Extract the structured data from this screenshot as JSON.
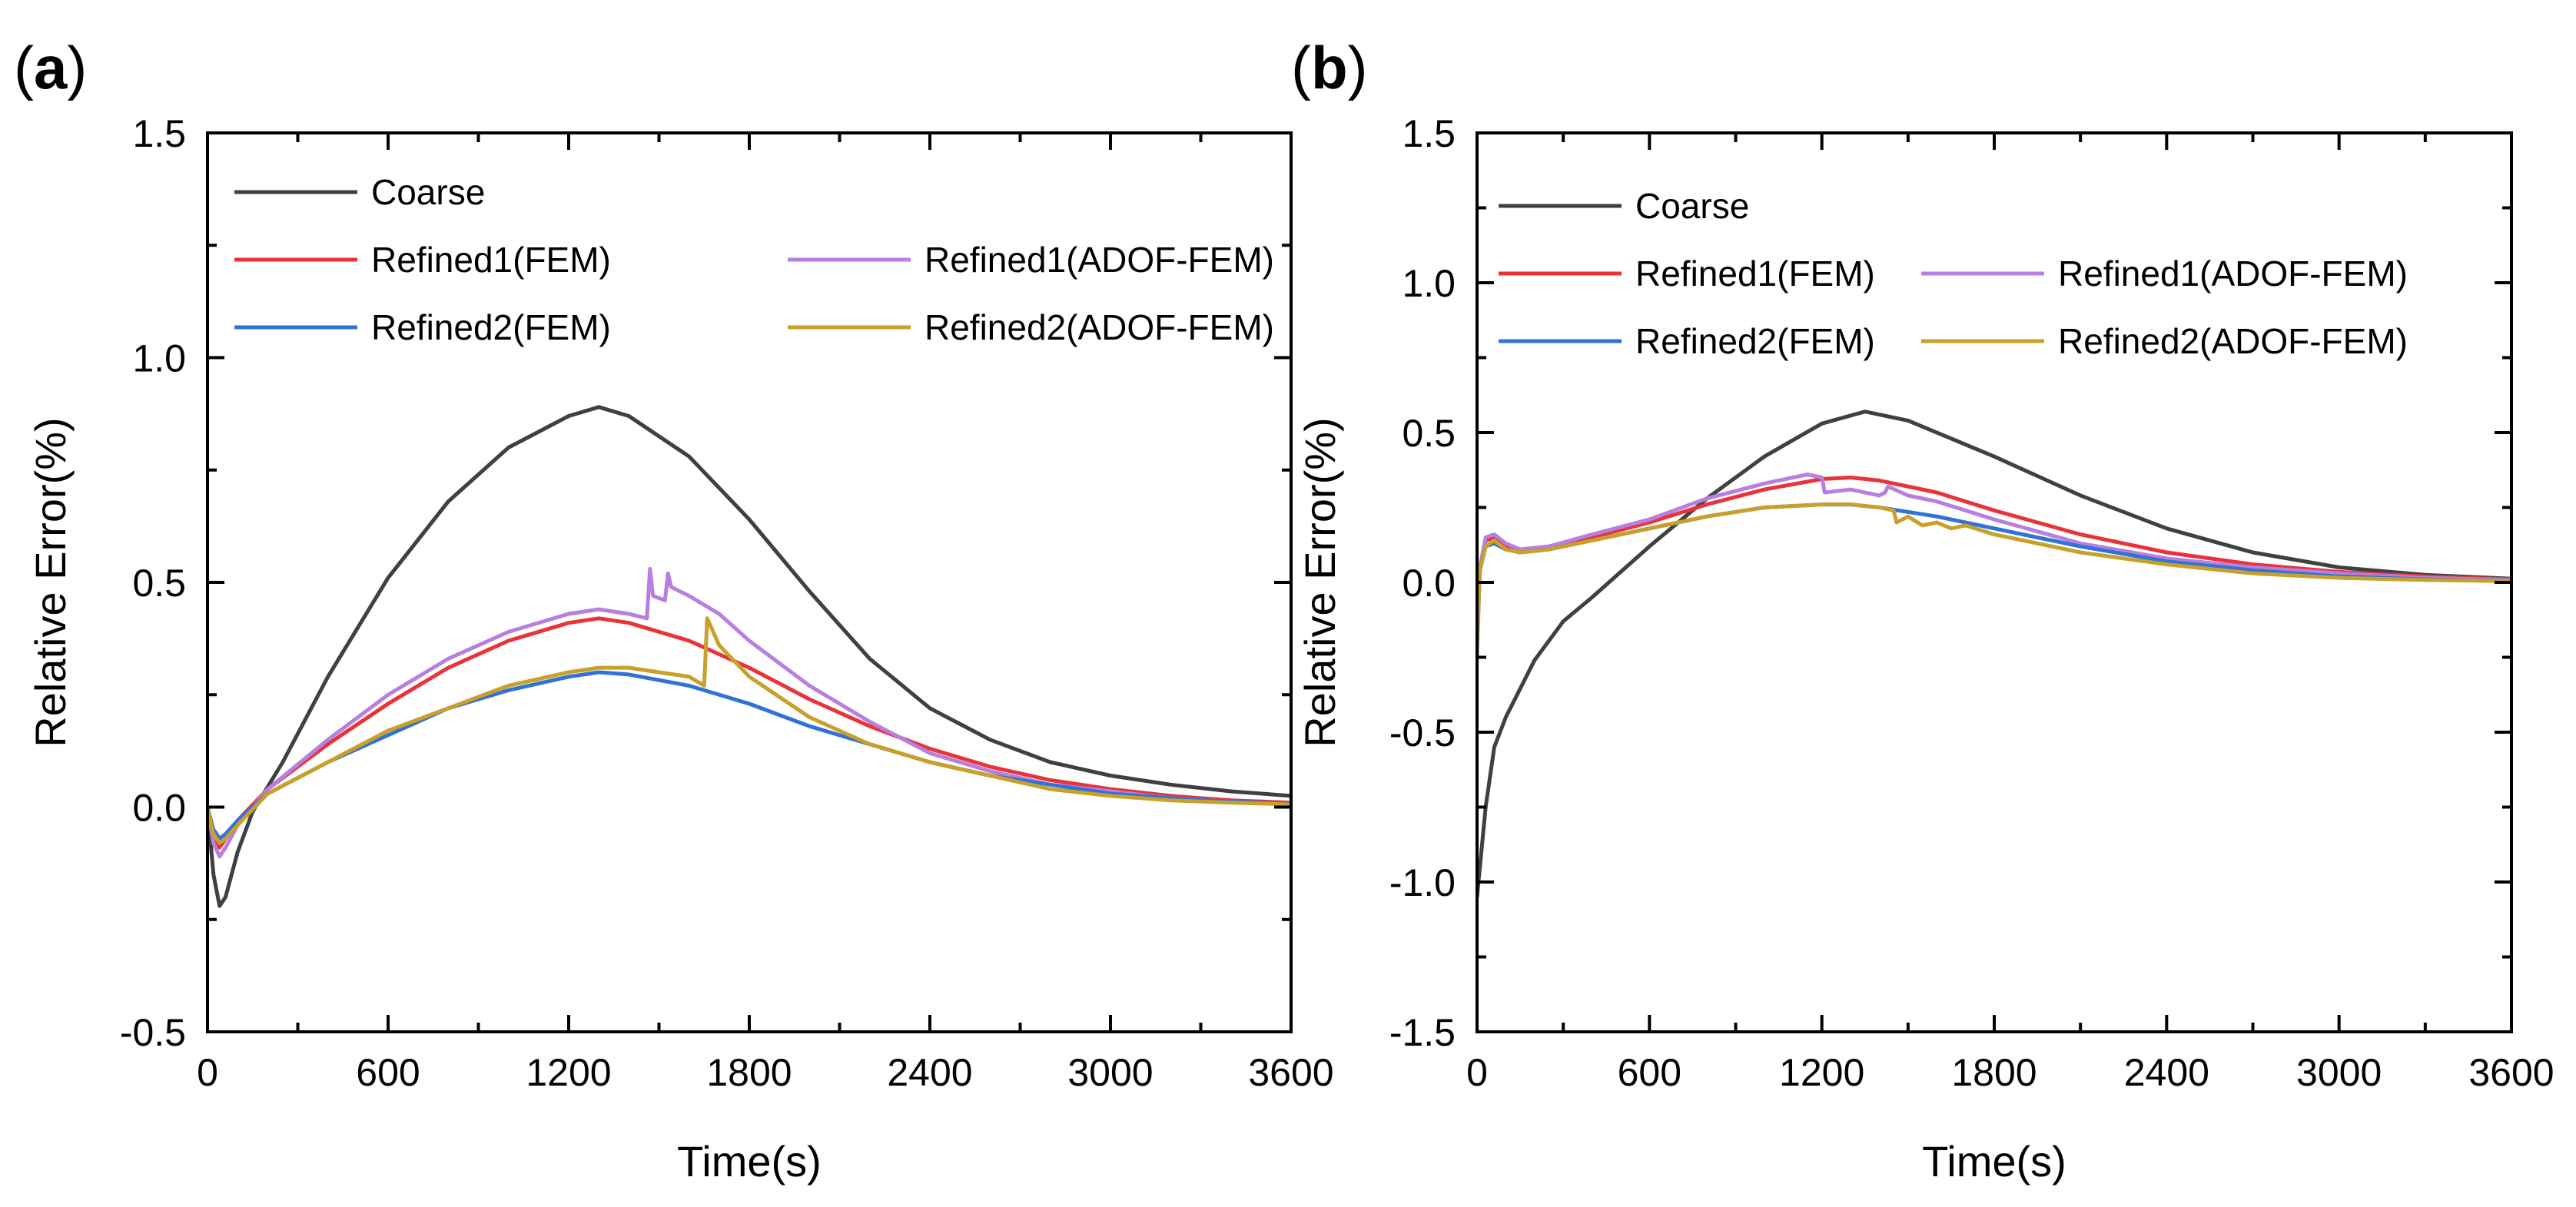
{
  "colors": {
    "coarse": "#404040",
    "refined1_fem": "#e8333a",
    "refined1_adof": "#b77fe0",
    "refined2_fem": "#2f73d6",
    "refined2_adof": "#c8a02a"
  },
  "chart_data": [
    {
      "type": "line",
      "panel_label": "(a)",
      "panel_prefix": "(",
      "panel_letter": "a",
      "panel_suffix": ")",
      "xlabel": "Time(s)",
      "ylabel": "Relative Error(%)",
      "xlim": [
        0,
        3600
      ],
      "ylim": [
        -0.5,
        1.5
      ],
      "xticks": [
        "0",
        "600",
        "1200",
        "1800",
        "2400",
        "3000",
        "3600"
      ],
      "yticks": [
        "-0.5",
        "0.0",
        "0.5",
        "1.0",
        "1.5"
      ],
      "grid": false,
      "legend_position": "top-left",
      "series": [
        {
          "name": "Coarse",
          "color_key": "coarse",
          "x": [
            0,
            20,
            40,
            60,
            100,
            150,
            250,
            400,
            600,
            800,
            1000,
            1200,
            1300,
            1400,
            1600,
            1800,
            2000,
            2200,
            2400,
            2600,
            2800,
            3000,
            3200,
            3400,
            3600
          ],
          "y": [
            0.0,
            -0.15,
            -0.22,
            -0.2,
            -0.1,
            -0.01,
            0.1,
            0.29,
            0.51,
            0.68,
            0.8,
            0.87,
            0.89,
            0.87,
            0.78,
            0.64,
            0.48,
            0.33,
            0.22,
            0.15,
            0.1,
            0.07,
            0.05,
            0.035,
            0.025
          ]
        },
        {
          "name": "Refined1(FEM)",
          "color_key": "refined1_fem",
          "x": [
            0,
            20,
            40,
            60,
            100,
            200,
            400,
            600,
            800,
            1000,
            1200,
            1300,
            1400,
            1600,
            1800,
            2000,
            2200,
            2400,
            2600,
            2800,
            3000,
            3200,
            3400,
            3600
          ],
          "y": [
            0.0,
            -0.06,
            -0.09,
            -0.07,
            -0.03,
            0.04,
            0.14,
            0.23,
            0.31,
            0.37,
            0.41,
            0.42,
            0.41,
            0.37,
            0.31,
            0.24,
            0.18,
            0.13,
            0.09,
            0.06,
            0.04,
            0.025,
            0.015,
            0.01
          ]
        },
        {
          "name": "Refined1(ADOF-FEM)",
          "color_key": "refined1_adof",
          "x": [
            0,
            20,
            40,
            60,
            100,
            200,
            400,
            600,
            800,
            1000,
            1200,
            1300,
            1400,
            1460,
            1470,
            1480,
            1520,
            1530,
            1540,
            1600,
            1700,
            1800,
            2000,
            2200,
            2400,
            2600,
            2800,
            3000,
            3200,
            3400,
            3600
          ],
          "y": [
            0.0,
            -0.08,
            -0.11,
            -0.09,
            -0.04,
            0.04,
            0.15,
            0.25,
            0.33,
            0.39,
            0.43,
            0.44,
            0.43,
            0.42,
            0.53,
            0.47,
            0.46,
            0.52,
            0.49,
            0.47,
            0.43,
            0.37,
            0.27,
            0.19,
            0.12,
            0.08,
            0.05,
            0.035,
            0.02,
            0.012,
            0.008
          ]
        },
        {
          "name": "Refined2(FEM)",
          "color_key": "refined2_fem",
          "x": [
            0,
            20,
            40,
            60,
            100,
            200,
            400,
            600,
            800,
            1000,
            1200,
            1300,
            1400,
            1600,
            1800,
            2000,
            2200,
            2400,
            2600,
            2800,
            3000,
            3200,
            3400,
            3600
          ],
          "y": [
            0.0,
            -0.05,
            -0.07,
            -0.06,
            -0.03,
            0.03,
            0.1,
            0.16,
            0.22,
            0.26,
            0.29,
            0.3,
            0.295,
            0.27,
            0.23,
            0.18,
            0.14,
            0.1,
            0.07,
            0.05,
            0.03,
            0.02,
            0.012,
            0.008
          ]
        },
        {
          "name": "Refined2(ADOF-FEM)",
          "color_key": "refined2_adof",
          "x": [
            0,
            20,
            40,
            60,
            100,
            200,
            400,
            600,
            800,
            1000,
            1200,
            1300,
            1400,
            1500,
            1600,
            1650,
            1660,
            1700,
            1800,
            2000,
            2200,
            2400,
            2600,
            2800,
            3000,
            3200,
            3400,
            3600
          ],
          "y": [
            0.0,
            -0.06,
            -0.08,
            -0.07,
            -0.04,
            0.03,
            0.1,
            0.17,
            0.22,
            0.27,
            0.3,
            0.31,
            0.31,
            0.3,
            0.29,
            0.27,
            0.42,
            0.36,
            0.29,
            0.2,
            0.14,
            0.1,
            0.07,
            0.04,
            0.025,
            0.015,
            0.01,
            0.006
          ]
        }
      ]
    },
    {
      "type": "line",
      "panel_label": "(b)",
      "panel_prefix": "(",
      "panel_letter": "b",
      "panel_suffix": ")",
      "xlabel": "Time(s)",
      "ylabel": "Relative Error(%)",
      "xlim": [
        0,
        3600
      ],
      "ylim": [
        -1.5,
        1.5
      ],
      "xticks": [
        "0",
        "600",
        "1200",
        "1800",
        "2400",
        "3000",
        "3600"
      ],
      "yticks": [
        "-1.5",
        "-1.0",
        "-0.5",
        "0.0",
        "0.5",
        "1.0",
        "1.5"
      ],
      "grid": false,
      "legend_position": "top-left",
      "series": [
        {
          "name": "Coarse",
          "color_key": "coarse",
          "x": [
            0,
            10,
            30,
            60,
            100,
            200,
            300,
            400,
            600,
            800,
            1000,
            1200,
            1350,
            1500,
            1800,
            2100,
            2400,
            2700,
            3000,
            3300,
            3600
          ],
          "y": [
            -1.05,
            -0.95,
            -0.75,
            -0.55,
            -0.45,
            -0.26,
            -0.13,
            -0.05,
            0.12,
            0.28,
            0.42,
            0.53,
            0.57,
            0.54,
            0.42,
            0.29,
            0.18,
            0.1,
            0.05,
            0.025,
            0.012
          ]
        },
        {
          "name": "Refined1(FEM)",
          "color_key": "refined1_fem",
          "x": [
            0,
            10,
            30,
            60,
            100,
            150,
            250,
            400,
            600,
            800,
            1000,
            1200,
            1300,
            1400,
            1600,
            1800,
            2100,
            2400,
            2700,
            3000,
            3300,
            3600
          ],
          "y": [
            -0.2,
            0.05,
            0.14,
            0.15,
            0.12,
            0.11,
            0.12,
            0.15,
            0.2,
            0.26,
            0.31,
            0.345,
            0.35,
            0.34,
            0.3,
            0.24,
            0.16,
            0.1,
            0.06,
            0.035,
            0.02,
            0.01
          ]
        },
        {
          "name": "Refined1(ADOF-FEM)",
          "color_key": "refined1_adof",
          "x": [
            0,
            10,
            30,
            60,
            100,
            150,
            250,
            400,
            600,
            800,
            1000,
            1150,
            1200,
            1210,
            1300,
            1400,
            1420,
            1430,
            1500,
            1600,
            1800,
            2100,
            2400,
            2700,
            3000,
            3300,
            3600
          ],
          "y": [
            -0.25,
            0.05,
            0.15,
            0.16,
            0.13,
            0.11,
            0.12,
            0.16,
            0.21,
            0.28,
            0.33,
            0.36,
            0.35,
            0.3,
            0.31,
            0.29,
            0.3,
            0.32,
            0.29,
            0.27,
            0.21,
            0.13,
            0.08,
            0.05,
            0.03,
            0.015,
            0.008
          ]
        },
        {
          "name": "Refined2(FEM)",
          "color_key": "refined2_fem",
          "x": [
            0,
            10,
            30,
            60,
            100,
            150,
            250,
            400,
            600,
            800,
            1000,
            1200,
            1300,
            1400,
            1600,
            1800,
            2100,
            2400,
            2700,
            3000,
            3300,
            3600
          ],
          "y": [
            -0.2,
            0.04,
            0.12,
            0.13,
            0.11,
            0.1,
            0.11,
            0.14,
            0.18,
            0.22,
            0.25,
            0.26,
            0.26,
            0.25,
            0.22,
            0.18,
            0.12,
            0.07,
            0.04,
            0.02,
            0.01,
            0.005
          ]
        },
        {
          "name": "Refined2(ADOF-FEM)",
          "color_key": "refined2_adof",
          "x": [
            0,
            10,
            30,
            60,
            100,
            150,
            250,
            400,
            600,
            800,
            1000,
            1200,
            1300,
            1400,
            1450,
            1460,
            1500,
            1550,
            1600,
            1650,
            1700,
            1800,
            2100,
            2400,
            2700,
            3000,
            3300,
            3600
          ],
          "y": [
            -0.2,
            0.04,
            0.12,
            0.14,
            0.11,
            0.1,
            0.11,
            0.14,
            0.18,
            0.22,
            0.25,
            0.26,
            0.26,
            0.25,
            0.24,
            0.2,
            0.22,
            0.19,
            0.2,
            0.18,
            0.19,
            0.16,
            0.1,
            0.06,
            0.03,
            0.015,
            0.008,
            0.004
          ]
        }
      ]
    }
  ]
}
